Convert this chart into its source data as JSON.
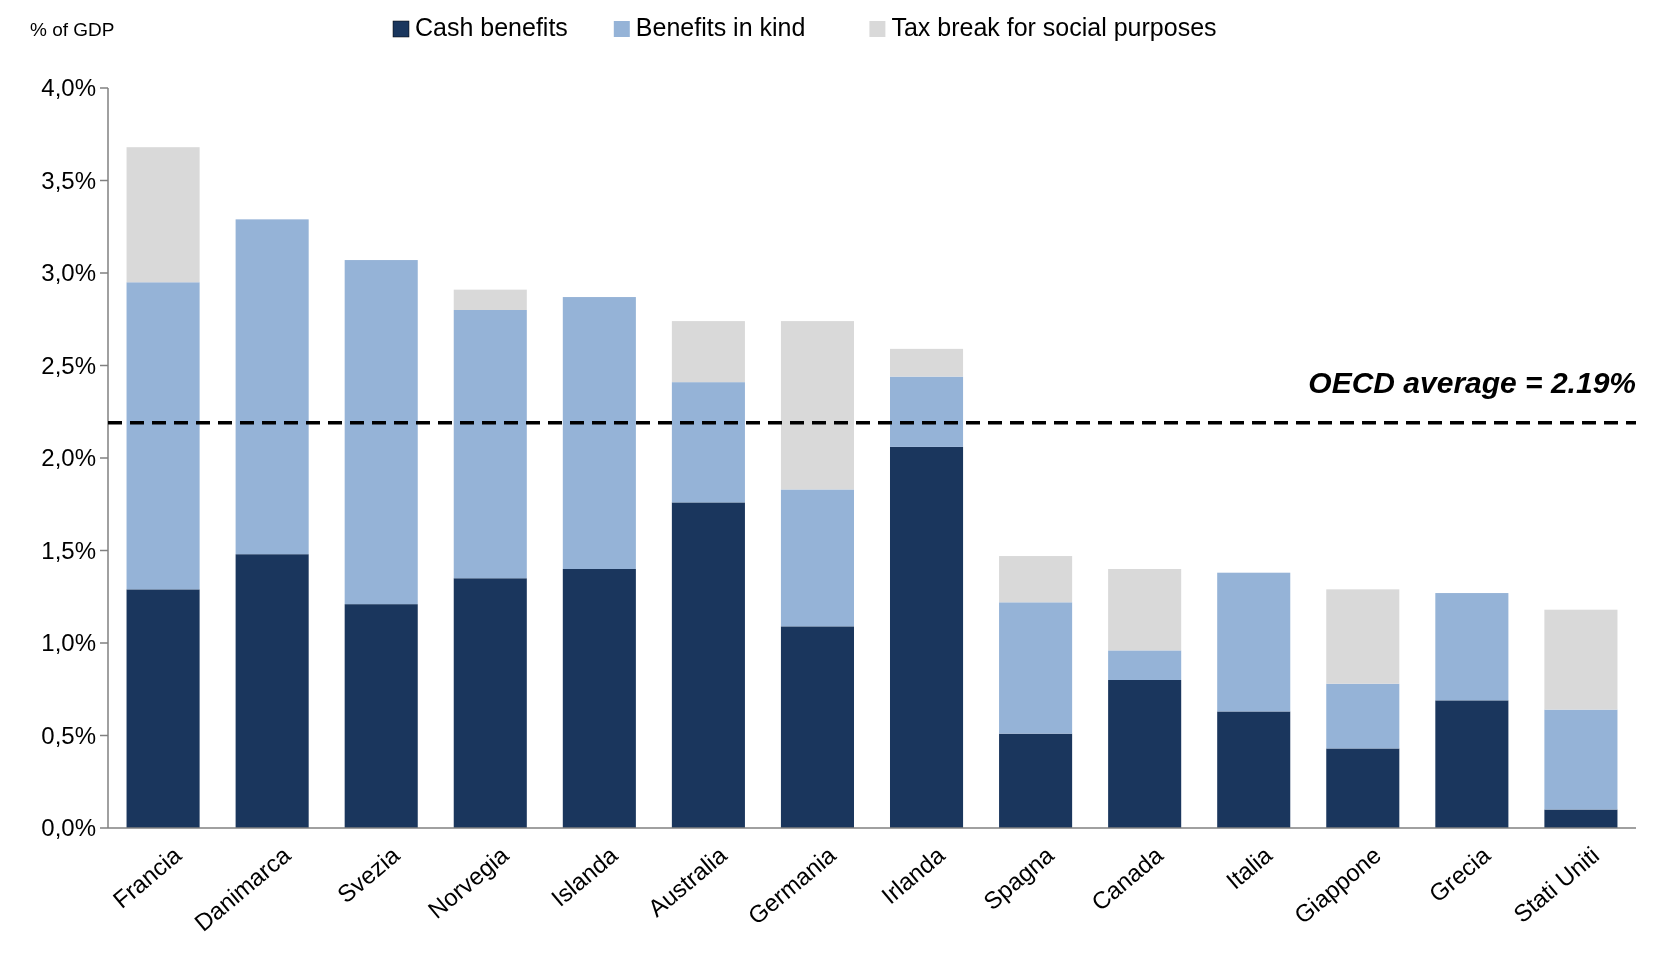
{
  "chart_data": {
    "type": "bar",
    "stacked": true,
    "ylabel": "% of GDP",
    "categories": [
      "Francia",
      "Danimarca",
      "Svezia",
      "Norvegia",
      "Islanda",
      "Australia",
      "Germania",
      "Irlanda",
      "Spagna",
      "Canada",
      "Italia",
      "Giappone",
      "Grecia",
      "Stati Uniti"
    ],
    "series": [
      {
        "name": "Cash benefits",
        "color": "#1a365d",
        "values": [
          1.29,
          1.48,
          1.21,
          1.35,
          1.4,
          1.76,
          1.09,
          2.06,
          0.51,
          0.8,
          0.63,
          0.43,
          0.69,
          0.1
        ]
      },
      {
        "name": "Benefits in kind",
        "color": "#95b3d7",
        "values": [
          1.66,
          1.81,
          1.86,
          1.45,
          1.47,
          0.65,
          0.74,
          0.38,
          0.71,
          0.16,
          0.75,
          0.35,
          0.58,
          0.54
        ]
      },
      {
        "name": "Tax break for social purposes",
        "color": "#d9d9d9",
        "values": [
          0.73,
          0,
          0,
          0.11,
          0,
          0.33,
          0.91,
          0.15,
          0.25,
          0.44,
          0,
          0.51,
          0,
          0.54
        ]
      }
    ],
    "ylim": [
      0,
      4
    ],
    "yticks": [
      {
        "value": 0,
        "label": "0,0%"
      },
      {
        "value": 0.5,
        "label": "0,5%"
      },
      {
        "value": 1,
        "label": "1,0%"
      },
      {
        "value": 1.5,
        "label": "1,5%"
      },
      {
        "value": 2,
        "label": "2,0%"
      },
      {
        "value": 2.5,
        "label": "2,5%"
      },
      {
        "value": 3,
        "label": "3,0%"
      },
      {
        "value": 3.5,
        "label": "3,5%"
      },
      {
        "value": 4,
        "label": "4,0%"
      }
    ],
    "ref_lines": [
      {
        "axis": "y",
        "value": 2.19,
        "label": "OECD average = 2.19%",
        "color": "#000000",
        "line_style": "dashed"
      }
    ],
    "legend": "top",
    "grid": false
  }
}
